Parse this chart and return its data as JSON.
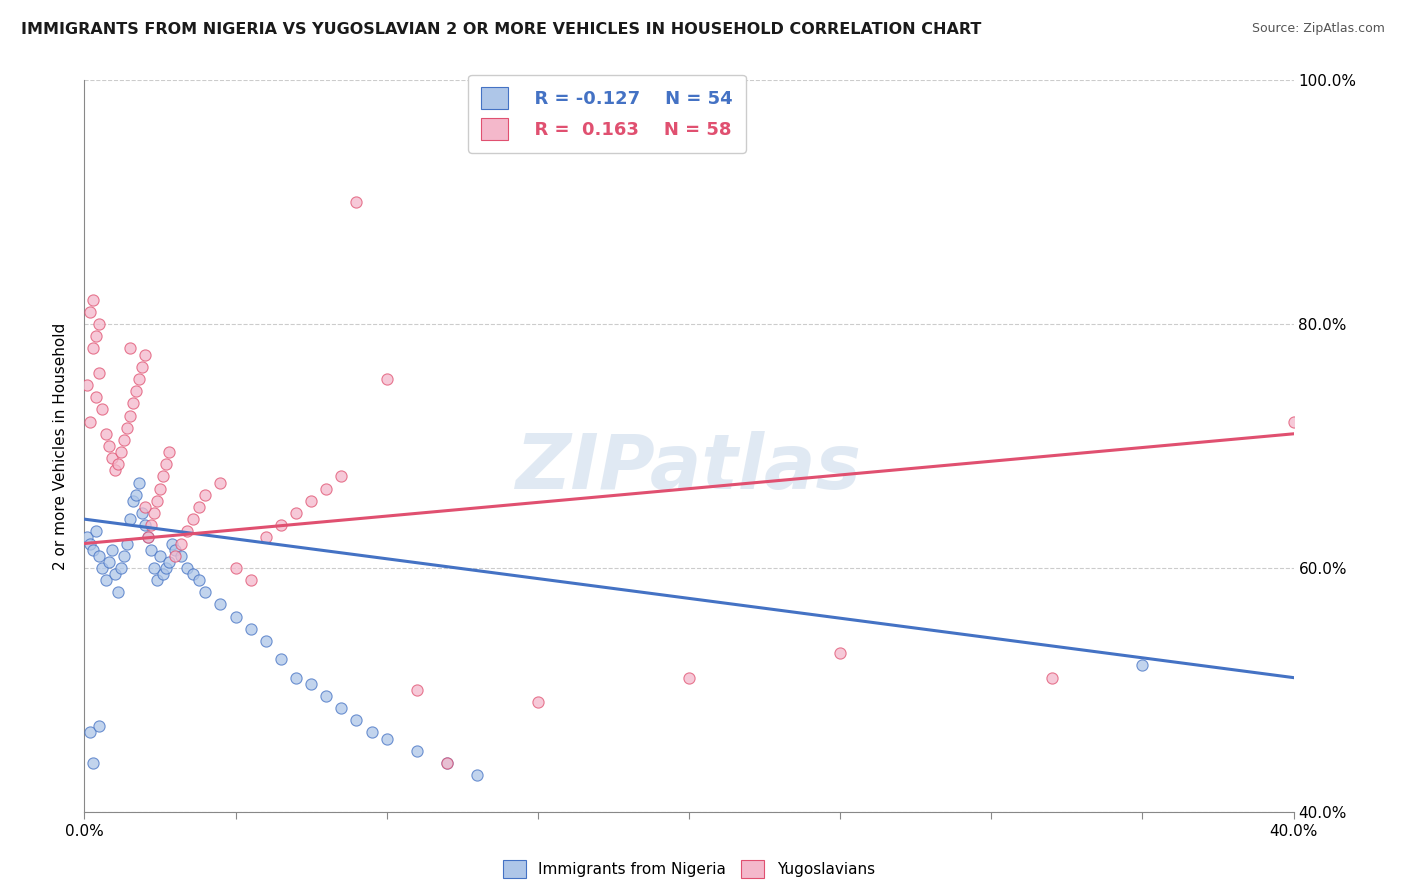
{
  "title": "IMMIGRANTS FROM NIGERIA VS YUGOSLAVIAN 2 OR MORE VEHICLES IN HOUSEHOLD CORRELATION CHART",
  "source": "Source: ZipAtlas.com",
  "ylabel_label": "2 or more Vehicles in Household",
  "xmin": 0.0,
  "xmax": 0.4,
  "ymin": 0.4,
  "ymax": 1.0,
  "series1": {
    "name": "Immigrants from Nigeria",
    "dot_color": "#aec6e8",
    "line_color": "#4472c4",
    "R": -0.127,
    "N": 54,
    "points_x": [
      0.001,
      0.002,
      0.003,
      0.004,
      0.005,
      0.006,
      0.007,
      0.008,
      0.009,
      0.01,
      0.011,
      0.012,
      0.013,
      0.014,
      0.015,
      0.016,
      0.017,
      0.018,
      0.019,
      0.02,
      0.021,
      0.022,
      0.023,
      0.024,
      0.025,
      0.026,
      0.027,
      0.028,
      0.029,
      0.03,
      0.032,
      0.034,
      0.036,
      0.038,
      0.04,
      0.045,
      0.05,
      0.055,
      0.06,
      0.065,
      0.07,
      0.075,
      0.08,
      0.085,
      0.09,
      0.095,
      0.1,
      0.11,
      0.12,
      0.13,
      0.002,
      0.003,
      0.005,
      0.35
    ],
    "points_y": [
      0.625,
      0.62,
      0.615,
      0.63,
      0.61,
      0.6,
      0.59,
      0.605,
      0.615,
      0.595,
      0.58,
      0.6,
      0.61,
      0.62,
      0.64,
      0.655,
      0.66,
      0.67,
      0.645,
      0.635,
      0.625,
      0.615,
      0.6,
      0.59,
      0.61,
      0.595,
      0.6,
      0.605,
      0.62,
      0.615,
      0.61,
      0.6,
      0.595,
      0.59,
      0.58,
      0.57,
      0.56,
      0.55,
      0.54,
      0.525,
      0.51,
      0.505,
      0.495,
      0.485,
      0.475,
      0.465,
      0.46,
      0.45,
      0.44,
      0.43,
      0.465,
      0.44,
      0.47,
      0.52
    ],
    "trendline_x": [
      0.0,
      0.4
    ],
    "trendline_y": [
      0.64,
      0.51
    ]
  },
  "series2": {
    "name": "Yugoslavians",
    "dot_color": "#f4b8cb",
    "line_color": "#e05070",
    "R": 0.163,
    "N": 58,
    "points_x": [
      0.001,
      0.002,
      0.003,
      0.004,
      0.005,
      0.006,
      0.007,
      0.008,
      0.009,
      0.01,
      0.011,
      0.012,
      0.013,
      0.014,
      0.015,
      0.016,
      0.017,
      0.018,
      0.019,
      0.02,
      0.021,
      0.022,
      0.023,
      0.024,
      0.025,
      0.026,
      0.027,
      0.028,
      0.03,
      0.032,
      0.034,
      0.036,
      0.038,
      0.04,
      0.045,
      0.05,
      0.055,
      0.06,
      0.065,
      0.07,
      0.075,
      0.08,
      0.085,
      0.09,
      0.1,
      0.11,
      0.12,
      0.15,
      0.2,
      0.25,
      0.002,
      0.003,
      0.004,
      0.005,
      0.015,
      0.02,
      0.4,
      0.32
    ],
    "points_y": [
      0.75,
      0.72,
      0.78,
      0.74,
      0.76,
      0.73,
      0.71,
      0.7,
      0.69,
      0.68,
      0.685,
      0.695,
      0.705,
      0.715,
      0.725,
      0.735,
      0.745,
      0.755,
      0.765,
      0.775,
      0.625,
      0.635,
      0.645,
      0.655,
      0.665,
      0.675,
      0.685,
      0.695,
      0.61,
      0.62,
      0.63,
      0.64,
      0.65,
      0.66,
      0.67,
      0.6,
      0.59,
      0.625,
      0.635,
      0.645,
      0.655,
      0.665,
      0.675,
      0.9,
      0.755,
      0.5,
      0.44,
      0.49,
      0.51,
      0.53,
      0.81,
      0.82,
      0.79,
      0.8,
      0.78,
      0.65,
      0.72,
      0.51
    ],
    "trendline_x": [
      0.0,
      0.4
    ],
    "trendline_y": [
      0.62,
      0.71
    ]
  },
  "watermark": "ZIPatlas",
  "legend_R1": "R = -0.127",
  "legend_N1": "N = 54",
  "legend_R2": "R =  0.163",
  "legend_N2": "N = 58",
  "title_fontsize": 11.5,
  "tick_fontsize": 11,
  "label_fontsize": 11,
  "xtick_positions": [
    0.0,
    0.05,
    0.1,
    0.15,
    0.2,
    0.25,
    0.3,
    0.35,
    0.4
  ],
  "ytick_positions": [
    0.4,
    0.6,
    0.8,
    1.0
  ],
  "ytick_labels": [
    "40.0%",
    "60.0%",
    "80.0%",
    "100.0%"
  ]
}
